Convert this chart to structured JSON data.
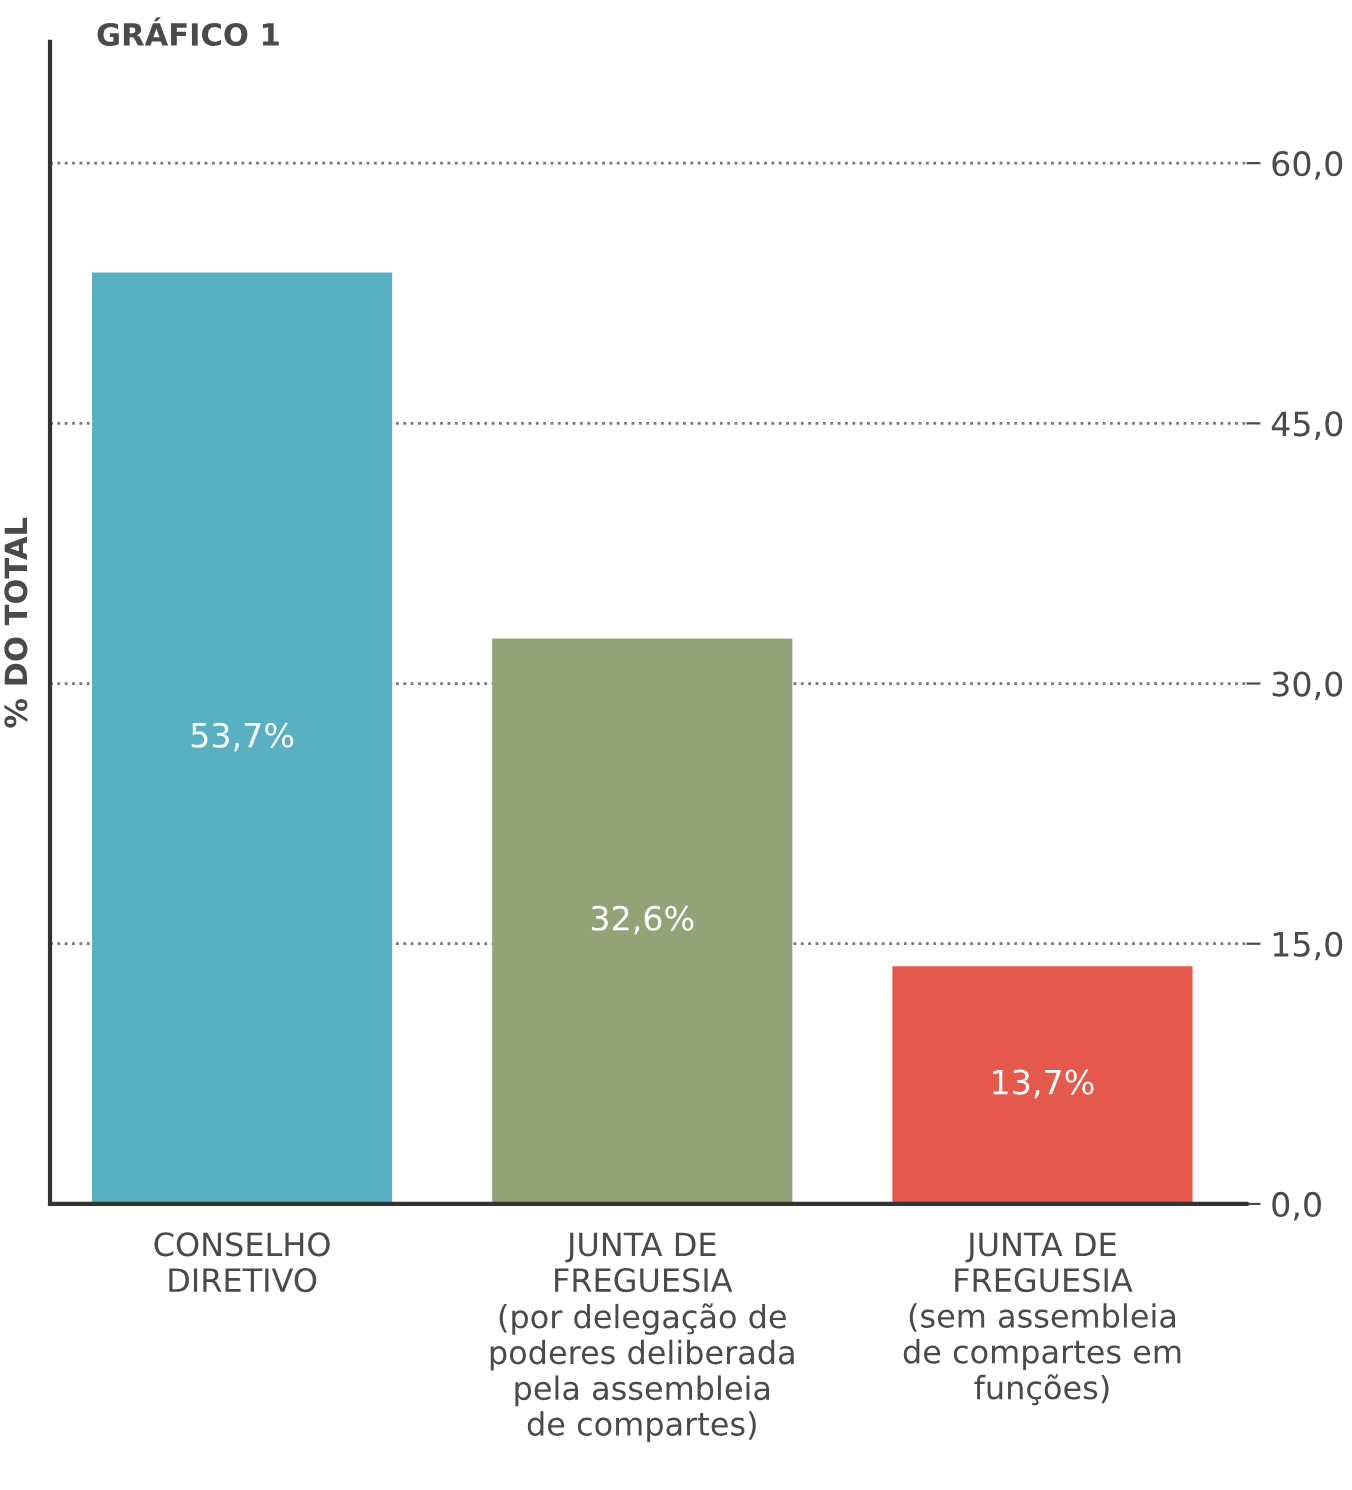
{
  "chart_data": {
    "type": "bar",
    "title": "GRÁFICO 1",
    "ylabel": "% DO TOTAL",
    "categories": [
      "CONSELHO\nDIRETIVO",
      "JUNTA DE\nFREGUESIA\n(por delegação de\npoderes deliberada\npela assembleia\nde compartes)",
      "JUNTA DE\nFREGUESIA\n(sem assembleia\nde compartes em\nfunções)"
    ],
    "values": [
      53.7,
      32.6,
      13.7
    ],
    "colors": [
      "#58b0c1",
      "#93a378",
      "#e4594c"
    ],
    "value_labels": [
      "53,7%",
      "32,6%",
      "13,7%"
    ],
    "ylim": [
      0,
      67
    ],
    "yticks": [
      {
        "value": 0,
        "label": "0,0"
      },
      {
        "value": 15,
        "label": "15,0"
      },
      {
        "value": 30,
        "label": "30,0"
      },
      {
        "value": 45,
        "label": "45,0"
      },
      {
        "value": 60,
        "label": "60,0"
      }
    ],
    "grid": "y"
  }
}
